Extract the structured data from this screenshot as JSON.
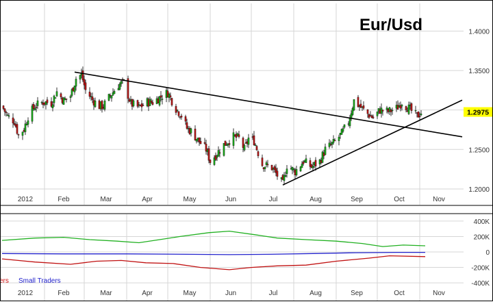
{
  "chart_data": [
    {
      "type": "candlestick",
      "title": "Eur/Usd",
      "x_ticks": [
        "2012",
        "Feb",
        "Mar",
        "Apr",
        "May",
        "Jun",
        "Jul",
        "Aug",
        "Sep",
        "Oct",
        "Nov"
      ],
      "y_ticks": [
        "1.2000",
        "1.2500",
        "1.3000",
        "1.3500",
        "1.4000"
      ],
      "ylim": [
        1.18,
        1.435
      ],
      "grid": true,
      "last_value_label": "1.2975",
      "last_value": 1.2975,
      "colors": {
        "up": "#1aa31a",
        "down": "#b01616",
        "last_value_bg": "#ffff00",
        "grid": "#d6d6d6"
      },
      "close_path": [
        [
          "2012-01-01",
          1.305
        ],
        [
          "2012-01-05",
          1.292
        ],
        [
          "2012-01-10",
          1.286
        ],
        [
          "2012-01-13",
          1.268
        ],
        [
          "2012-01-17",
          1.276
        ],
        [
          "2012-01-20",
          1.292
        ],
        [
          "2012-01-25",
          1.305
        ],
        [
          "2012-01-31",
          1.31
        ],
        [
          "2012-02-06",
          1.309
        ],
        [
          "2012-02-10",
          1.323
        ],
        [
          "2012-02-15",
          1.312
        ],
        [
          "2012-02-20",
          1.318
        ],
        [
          "2012-02-24",
          1.34
        ],
        [
          "2012-02-28",
          1.345
        ],
        [
          "2012-03-02",
          1.325
        ],
        [
          "2012-03-07",
          1.313
        ],
        [
          "2012-03-12",
          1.305
        ],
        [
          "2012-03-15",
          1.305
        ],
        [
          "2012-03-20",
          1.318
        ],
        [
          "2012-03-26",
          1.332
        ],
        [
          "2012-03-30",
          1.335
        ],
        [
          "2012-04-04",
          1.308
        ],
        [
          "2012-04-10",
          1.303
        ],
        [
          "2012-04-16",
          1.31
        ],
        [
          "2012-04-20",
          1.31
        ],
        [
          "2012-04-27",
          1.318
        ],
        [
          "2012-05-01",
          1.322
        ],
        [
          "2012-05-07",
          1.302
        ],
        [
          "2012-05-11",
          1.293
        ],
        [
          "2012-05-15",
          1.277
        ],
        [
          "2012-05-18",
          1.273
        ],
        [
          "2012-05-23",
          1.262
        ],
        [
          "2012-05-29",
          1.25
        ],
        [
          "2012-06-01",
          1.235
        ],
        [
          "2012-06-05",
          1.243
        ],
        [
          "2012-06-11",
          1.256
        ],
        [
          "2012-06-18",
          1.266
        ],
        [
          "2012-06-22",
          1.264
        ],
        [
          "2012-06-26",
          1.25
        ],
        [
          "2012-06-29",
          1.264
        ],
        [
          "2012-07-03",
          1.261
        ],
        [
          "2012-07-09",
          1.231
        ],
        [
          "2012-07-16",
          1.227
        ],
        [
          "2012-07-20",
          1.217
        ],
        [
          "2012-07-24",
          1.206
        ],
        [
          "2012-07-27",
          1.23
        ],
        [
          "2012-08-02",
          1.222
        ],
        [
          "2012-08-08",
          1.235
        ],
        [
          "2012-08-14",
          1.228
        ],
        [
          "2012-08-20",
          1.235
        ],
        [
          "2012-08-24",
          1.25
        ],
        [
          "2012-08-30",
          1.258
        ],
        [
          "2012-09-05",
          1.27
        ],
        [
          "2012-09-10",
          1.285
        ],
        [
          "2012-09-14",
          1.312
        ],
        [
          "2012-09-18",
          1.305
        ],
        [
          "2012-09-24",
          1.295
        ],
        [
          "2012-09-28",
          1.29
        ],
        [
          "2012-10-03",
          1.3
        ],
        [
          "2012-10-09",
          1.298
        ],
        [
          "2012-10-15",
          1.302
        ],
        [
          "2012-10-19",
          1.31
        ],
        [
          "2012-10-24",
          1.302
        ],
        [
          "2012-10-30",
          1.292
        ],
        [
          "2012-11-02",
          1.297
        ]
      ],
      "trendlines": [
        {
          "from": [
            "2012-02-23",
            1.348
          ],
          "to": [
            "2012-12-02",
            1.266
          ]
        },
        {
          "from": [
            "2012-07-24",
            1.205
          ],
          "to": [
            "2012-12-02",
            1.3125
          ]
        }
      ]
    },
    {
      "type": "line",
      "x_ticks": [
        "2012",
        "Feb",
        "Mar",
        "Apr",
        "May",
        "Jun",
        "Jul",
        "Aug",
        "Sep",
        "Oct",
        "Nov"
      ],
      "y_ticks": [
        "400K",
        "200K",
        "0",
        "-200K",
        "-400K"
      ],
      "ylim": [
        -470000,
        470000
      ],
      "legend": [
        {
          "label": "ers",
          "color": "#d01010"
        },
        {
          "label": "Small Traders",
          "color": "#2222cc"
        }
      ],
      "series": [
        {
          "name": "",
          "color": "#20b020",
          "values": [
            [
              "2012-01-01",
              150000
            ],
            [
              "2012-01-25",
              180000
            ],
            [
              "2012-02-15",
              190000
            ],
            [
              "2012-03-05",
              160000
            ],
            [
              "2012-03-25",
              140000
            ],
            [
              "2012-04-10",
              120000
            ],
            [
              "2012-04-25",
              160000
            ],
            [
              "2012-05-10",
              200000
            ],
            [
              "2012-05-31",
              250000
            ],
            [
              "2012-06-15",
              270000
            ],
            [
              "2012-07-05",
              220000
            ],
            [
              "2012-07-20",
              180000
            ],
            [
              "2012-08-10",
              160000
            ],
            [
              "2012-09-01",
              140000
            ],
            [
              "2012-09-20",
              110000
            ],
            [
              "2012-10-05",
              70000
            ],
            [
              "2012-10-20",
              90000
            ],
            [
              "2012-11-05",
              80000
            ]
          ]
        },
        {
          "name": "Small Traders",
          "color": "#2222cc",
          "values": [
            [
              "2012-01-01",
              -20000
            ],
            [
              "2012-02-15",
              -25000
            ],
            [
              "2012-04-01",
              -25000
            ],
            [
              "2012-05-15",
              -30000
            ],
            [
              "2012-06-15",
              -35000
            ],
            [
              "2012-07-15",
              -30000
            ],
            [
              "2012-08-15",
              -20000
            ],
            [
              "2012-09-15",
              -10000
            ],
            [
              "2012-10-15",
              -5000
            ],
            [
              "2012-11-05",
              -5000
            ]
          ]
        },
        {
          "name": "",
          "color": "#c01010",
          "values": [
            [
              "2012-01-01",
              -90000
            ],
            [
              "2012-01-25",
              -130000
            ],
            [
              "2012-02-20",
              -160000
            ],
            [
              "2012-03-10",
              -120000
            ],
            [
              "2012-03-28",
              -110000
            ],
            [
              "2012-04-15",
              -140000
            ],
            [
              "2012-05-05",
              -150000
            ],
            [
              "2012-05-25",
              -200000
            ],
            [
              "2012-06-15",
              -230000
            ],
            [
              "2012-07-01",
              -200000
            ],
            [
              "2012-07-20",
              -180000
            ],
            [
              "2012-08-10",
              -170000
            ],
            [
              "2012-09-01",
              -120000
            ],
            [
              "2012-09-25",
              -80000
            ],
            [
              "2012-10-10",
              -50000
            ],
            [
              "2012-11-05",
              -60000
            ]
          ]
        }
      ]
    }
  ]
}
